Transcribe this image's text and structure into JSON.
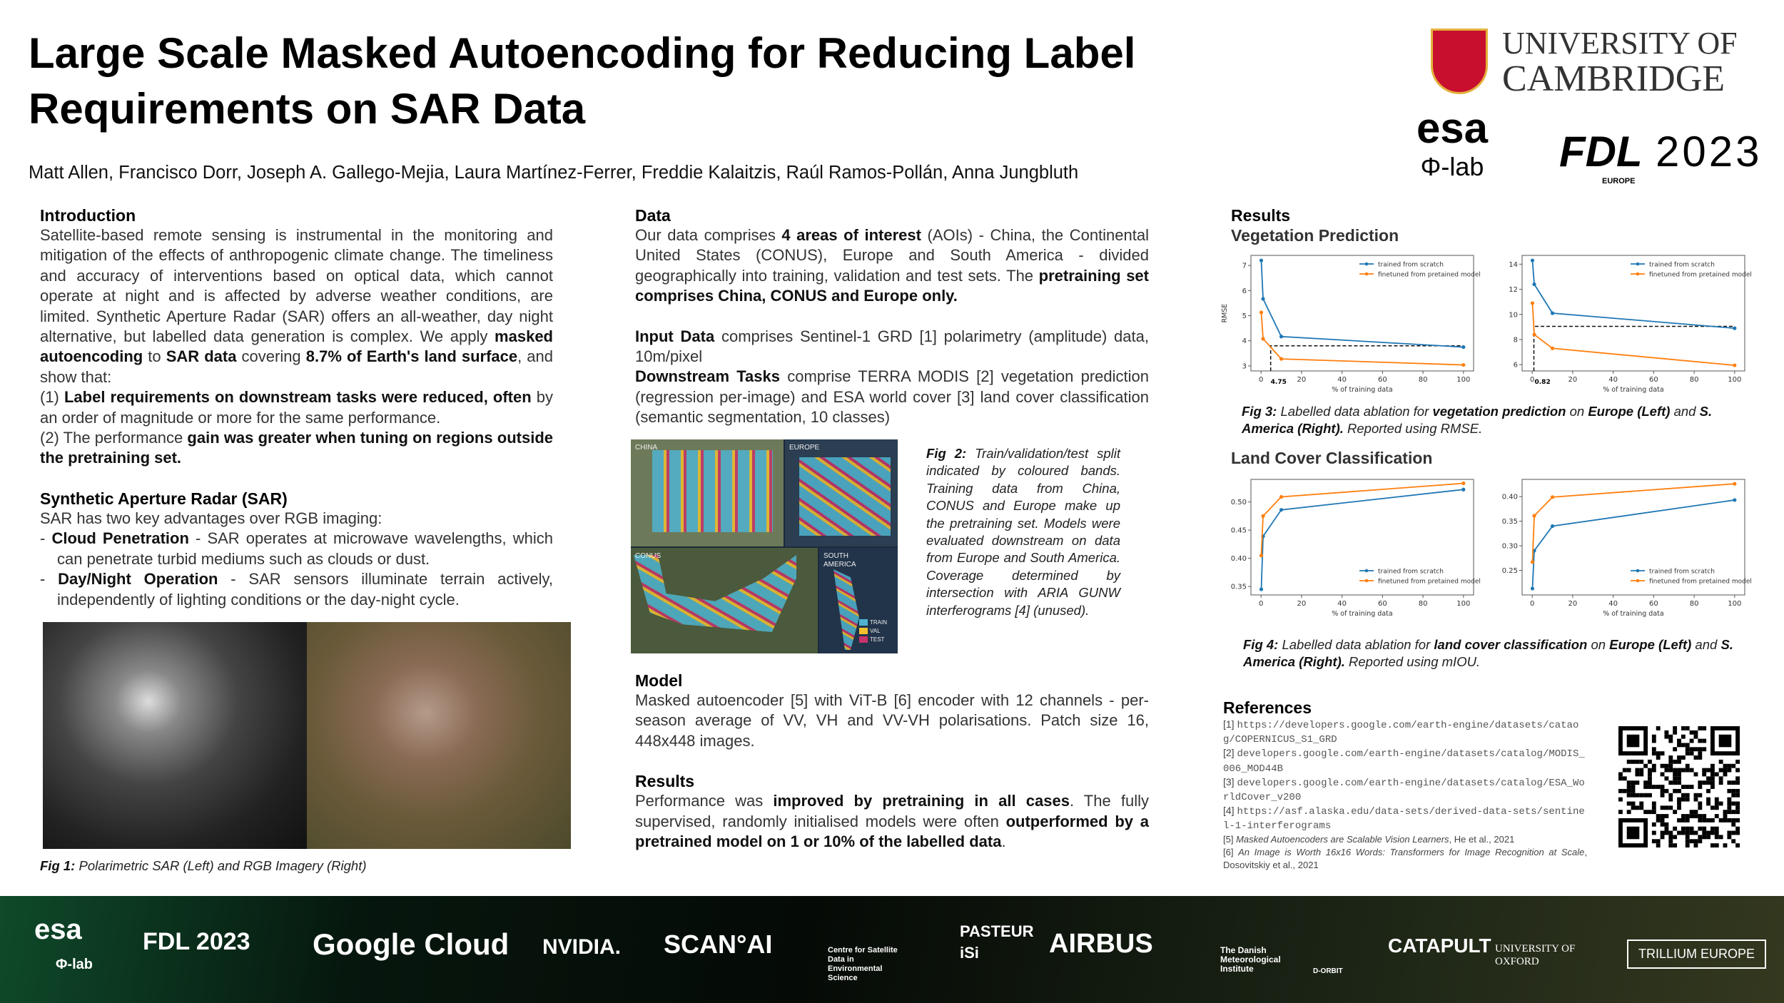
{
  "title": "Large Scale Masked Autoencoding for Reducing Label Requirements on SAR Data",
  "authors": "Matt Allen, Francisco Dorr, Joseph A. Gallego-Mejia, Laura Martínez-Ferrer, Freddie Kalaitzis, Raúl Ramos-Pollán, Anna Jungbluth",
  "logos": {
    "cambridge": [
      "UNIVERSITY OF",
      "CAMBRIDGE"
    ],
    "esa": "esa",
    "philab": "Φ-lab",
    "fdl": "FDL",
    "fdl_year": "2023",
    "fdl_sub": "EUROPE"
  },
  "intro": {
    "heading": "Introduction",
    "paras": [
      [
        [
          "Satellite-based remote sensing is instrumental in the monitoring and mitigation of the effects of anthropogenic climate change. The timeliness and accuracy of interventions based on optical data, which cannot operate at night and is affected by adverse weather conditions, are limited. Synthetic Aperture Radar (SAR) offers an all-weather, day night alternative, but labelled data generation is complex. We apply ",
          0
        ],
        [
          "masked autoencoding",
          1
        ],
        [
          " to ",
          0
        ],
        [
          "SAR data",
          1
        ],
        [
          " covering ",
          0
        ],
        [
          "8.7% of Earth's land surface",
          1
        ],
        [
          ", and show that:",
          0
        ]
      ],
      [
        [
          "(1) ",
          0
        ],
        [
          "Label requirements on downstream tasks were reduced, often",
          1
        ],
        [
          " by an order of magnitude or more for the same performance.",
          0
        ]
      ],
      [
        [
          "(2) The performance ",
          0
        ],
        [
          "gain was greater when tuning on regions outside the pretraining set.",
          1
        ]
      ]
    ]
  },
  "sar": {
    "heading": "Synthetic Aperture Radar (SAR)",
    "lead": "SAR has two key advantages over RGB imaging:",
    "bullets": [
      [
        [
          "- ",
          0
        ],
        [
          "Cloud Penetration",
          1
        ],
        [
          " - SAR operates at microwave wavelengths, which can penetrate turbid mediums such as clouds or dust.",
          0
        ]
      ],
      [
        [
          "- ",
          0
        ],
        [
          "Day/Night Operation",
          1
        ],
        [
          " - SAR sensors illuminate terrain actively, independently of lighting conditions or the day-night cycle.",
          0
        ]
      ]
    ],
    "fig1_label": "Fig 1:",
    "fig1_caption": " Polarimetric SAR (Left) and RGB Imagery (Right)"
  },
  "data": {
    "heading": "Data",
    "paras": [
      [
        [
          "Our data comprises ",
          0
        ],
        [
          "4 areas of interest",
          1
        ],
        [
          " (AOIs) - China, the Continental United States (CONUS), Europe and South America - divided geographically into training, validation and test sets. The ",
          0
        ],
        [
          "pretraining set comprises China, CONUS and Europe only.",
          1
        ]
      ],
      [
        [
          "Input Data",
          1
        ],
        [
          " comprises Sentinel-1 GRD [1] polarimetry (amplitude) data, 10m/pixel",
          0
        ]
      ],
      [
        [
          "Downstream Tasks",
          1
        ],
        [
          " comprise TERRA MODIS [2] vegetation prediction (regression per-image) and ESA world cover [3] land cover classification (semantic segmentation, 10 classes)",
          0
        ]
      ]
    ],
    "map_labels": {
      "china": "CHINA",
      "europe": "EUROPE",
      "conus": "CONUS",
      "sa": "SOUTH AMERICA"
    },
    "map_legend": [
      {
        "label": "TRAIN",
        "color": "#4fb3cf"
      },
      {
        "label": "VAL",
        "color": "#f2c12e"
      },
      {
        "label": "TEST",
        "color": "#c8336b"
      }
    ],
    "fig2_label": "Fig 2:",
    "fig2_caption": " Train/validation/test split indicated by coloured bands. Training data from China, CONUS and Europe make up the pretraining set. Models were evaluated downstream on data from Europe and South America. Coverage determined by intersection with ARIA GUNW interferograms [4] (unused)."
  },
  "model": {
    "heading": "Model",
    "text": "Masked autoencoder [5] with ViT-B [6] encoder with 12 channels - per-season average of VV, VH and VV-VH polarisations. Patch size 16, 448x448 images."
  },
  "results_mid": {
    "heading": "Results",
    "para": [
      [
        "Performance was ",
        0
      ],
      [
        "improved by pretraining in all cases",
        1
      ],
      [
        ". The fully supervised, randomly initialised models were often ",
        0
      ],
      [
        "outperformed by a pretrained model on 1 or 10% of the labelled data",
        1
      ],
      [
        ".",
        0
      ]
    ]
  },
  "results": {
    "heading": "Results",
    "veg_heading": "Vegetation Prediction",
    "lc_heading": "Land Cover Classification",
    "fig3": [
      [
        "Fig 3:",
        1
      ],
      [
        " Labelled data ablation for ",
        0
      ],
      [
        "vegetation prediction",
        1
      ],
      [
        " on ",
        0
      ],
      [
        "Europe (Left)",
        1
      ],
      [
        " and ",
        0
      ],
      [
        "S. America (Right).",
        1
      ],
      [
        " Reported using RMSE.",
        0
      ]
    ],
    "fig4": [
      [
        "Fig 4:",
        1
      ],
      [
        " Labelled data ablation for ",
        0
      ],
      [
        "land cover classification",
        1
      ],
      [
        " on ",
        0
      ],
      [
        "Europe (Left)",
        1
      ],
      [
        " and ",
        0
      ],
      [
        "S. America (Right).",
        1
      ],
      [
        " Reported using mIOU.",
        0
      ]
    ]
  },
  "chart_data": [
    {
      "id": "veg-europe",
      "type": "line",
      "xlabel": "% of training data",
      "ylabel": "RMSE",
      "xlim": [
        -5,
        105
      ],
      "ylim": [
        2.8,
        7.4
      ],
      "xticks": [
        0,
        20,
        40,
        60,
        80,
        100
      ],
      "yticks": [
        3,
        4,
        5,
        6,
        7
      ],
      "legend": "top-right",
      "series": [
        {
          "name": "trained from scratch",
          "color": "#1f77b4",
          "x": [
            0.1,
            1,
            10,
            100
          ],
          "y": [
            7.2,
            5.67,
            4.17,
            3.75
          ]
        },
        {
          "name": "finetuned from pretained model",
          "color": "#ff7f0e",
          "x": [
            0.1,
            1,
            10,
            100
          ],
          "y": [
            5.13,
            4.08,
            3.28,
            3.04
          ]
        }
      ],
      "annotation": {
        "x": 4.75,
        "y": 3.8,
        "label": "4.75"
      }
    },
    {
      "id": "veg-sa",
      "type": "line",
      "xlabel": "% of training data",
      "ylabel": "",
      "xlim": [
        -5,
        105
      ],
      "ylim": [
        5.5,
        14.7
      ],
      "xticks": [
        0,
        20,
        40,
        60,
        80,
        100
      ],
      "yticks": [
        6,
        8,
        10,
        12,
        14
      ],
      "legend": "top-right",
      "series": [
        {
          "name": "trained from scratch",
          "color": "#1f77b4",
          "x": [
            0.1,
            1,
            10,
            100
          ],
          "y": [
            14.3,
            12.4,
            10.1,
            8.9
          ]
        },
        {
          "name": "finetuned from pretained model",
          "color": "#ff7f0e",
          "x": [
            0.1,
            1,
            10,
            100
          ],
          "y": [
            10.9,
            8.4,
            7.3,
            5.95
          ]
        }
      ],
      "annotation": {
        "x": 0.82,
        "y": 9.05,
        "label": "0.82"
      }
    },
    {
      "id": "lc-europe",
      "type": "line",
      "xlabel": "% of training data",
      "ylabel": "",
      "xlim": [
        -5,
        105
      ],
      "ylim": [
        0.335,
        0.54
      ],
      "xticks": [
        0,
        20,
        40,
        60,
        80,
        100
      ],
      "yticks": [
        0.35,
        0.4,
        0.45,
        0.5
      ],
      "legend": "bottom-right",
      "series": [
        {
          "name": "trained from scratch",
          "color": "#1f77b4",
          "x": [
            0.1,
            1,
            10,
            100
          ],
          "y": [
            0.345,
            0.439,
            0.486,
            0.522
          ]
        },
        {
          "name": "finetuned from pretained model",
          "color": "#ff7f0e",
          "x": [
            0.1,
            1,
            10,
            100
          ],
          "y": [
            0.405,
            0.475,
            0.509,
            0.533
          ]
        }
      ]
    },
    {
      "id": "lc-sa",
      "type": "line",
      "xlabel": "% of training data",
      "ylabel": "",
      "xlim": [
        -5,
        105
      ],
      "ylim": [
        0.2,
        0.435
      ],
      "xticks": [
        0,
        20,
        40,
        60,
        80,
        100
      ],
      "yticks": [
        0.25,
        0.3,
        0.35,
        0.4
      ],
      "legend": "bottom-right",
      "series": [
        {
          "name": "trained from scratch",
          "color": "#1f77b4",
          "x": [
            0.1,
            1,
            10,
            100
          ],
          "y": [
            0.213,
            0.29,
            0.34,
            0.393
          ]
        },
        {
          "name": "finetuned from pretained model",
          "color": "#ff7f0e",
          "x": [
            0.1,
            1,
            10,
            100
          ],
          "y": [
            0.267,
            0.361,
            0.399,
            0.426
          ]
        }
      ]
    }
  ],
  "references": {
    "heading": "References",
    "items": [
      {
        "n": "[1] ",
        "mono": "https://developers.google.com/earth-engine/datasets/cataog/COPERNICUS_S1_GRD"
      },
      {
        "n": "[2] ",
        "mono": "developers.google.com/earth-engine/datasets/catalog/MODIS_006_MOD44B"
      },
      {
        "n": "[3] ",
        "mono": "developers.google.com/earth-engine/datasets/catalog/ESA_WorldCover_v200"
      },
      {
        "n": "[4] ",
        "mono": "https://asf.alaska.edu/data-sets/derived-data-sets/sentinel-1-interferograms"
      },
      {
        "n": "[5] ",
        "it": "Masked Autoencoders are Scalable Vision Learners",
        "rest": ", He et al., 2021"
      },
      {
        "n": "[6] ",
        "it": "An Image is Worth 16x16 Words: Transformers for Image Recognition at Scale",
        "rest": ", Dosovitskiy et al., 2021"
      }
    ]
  },
  "footer_logos": [
    "esa",
    "Φ-lab",
    "FDL 2023",
    "Google Cloud",
    "NVIDIA.",
    "SCAN°AI",
    "Centre for Satellite Data in Environmental Science",
    "PASTEUR",
    "iSi",
    "AIRBUS",
    "The Danish Meteorological Institute",
    "D-ORBIT",
    "CATAPULT",
    "UNIVERSITY OF OXFORD",
    "TRILLIUM EUROPE"
  ]
}
